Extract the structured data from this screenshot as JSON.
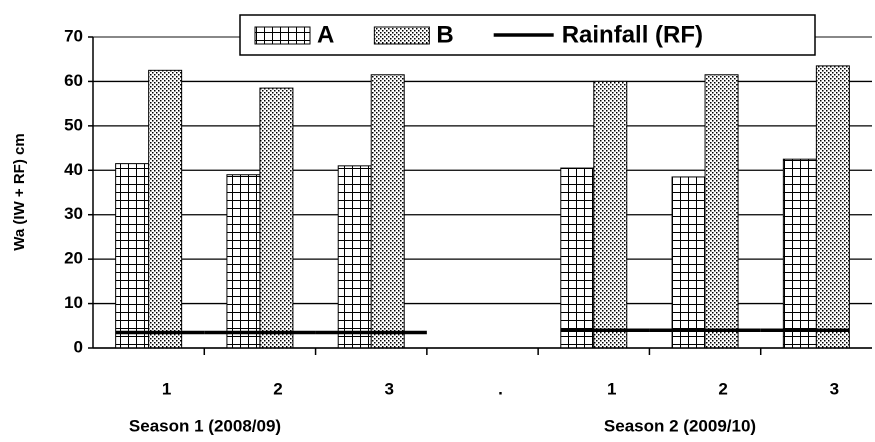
{
  "chart_data": {
    "type": "bar",
    "y_label": "Wa (IW + RF) cm",
    "categories": [
      "1",
      "2",
      "3",
      ".",
      "1",
      "2",
      "3"
    ],
    "group_labels": [
      "Season 1 (2008/09)",
      "Season 2 (2009/10)"
    ],
    "series": [
      {
        "name": "A",
        "pattern": "grid",
        "color": "#000000",
        "values": [
          41.5,
          39,
          41,
          null,
          40.5,
          38.5,
          42.5
        ]
      },
      {
        "name": "B",
        "pattern": "dots",
        "color": "#000000",
        "values": [
          62.5,
          58.5,
          61.5,
          null,
          60,
          61.5,
          63.5
        ]
      },
      {
        "name": "Rainfall (RF)",
        "type": "line",
        "color": "#000000",
        "values": [
          3.5,
          3.5,
          3.5,
          null,
          4,
          4,
          4
        ]
      }
    ],
    "ylim": [
      0,
      70
    ],
    "yticks": [
      0,
      10,
      20,
      30,
      40,
      50,
      60,
      70
    ],
    "grid": true,
    "legend": "top"
  }
}
